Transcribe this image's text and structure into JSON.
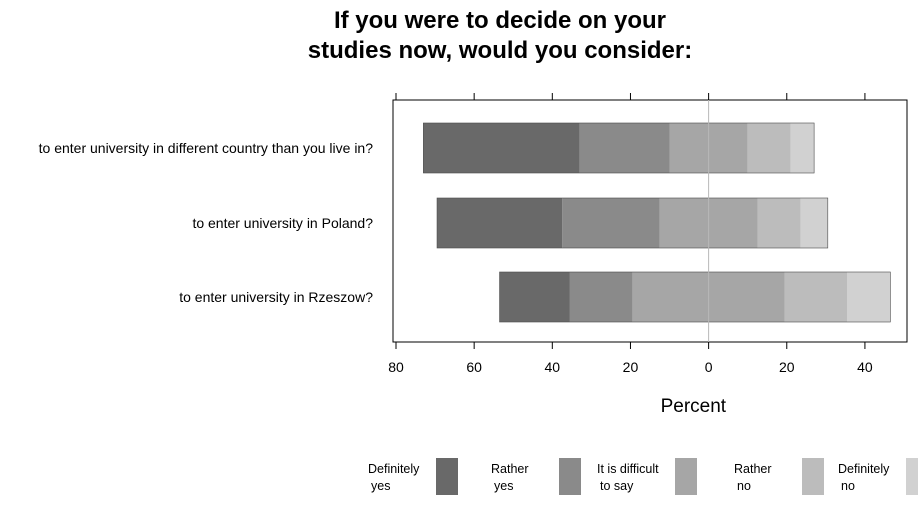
{
  "chart_data": {
    "type": "bar",
    "layout": "diverging-stacked-horizontal",
    "title_lines": [
      "If you were to decide on your",
      "studies now, would you consider:"
    ],
    "xlabel": "Percent",
    "xlim": [
      -80,
      50
    ],
    "x_ticks": [
      -80,
      -60,
      -40,
      -20,
      0,
      20,
      40
    ],
    "x_tick_labels": [
      "80",
      "60",
      "40",
      "20",
      "0",
      "20",
      "40"
    ],
    "categories": [
      "to enter university in different country than you live in?",
      "to enter university in Poland?",
      "to enter university in Rzeszow?"
    ],
    "series": [
      {
        "name_lines": [
          "Definitely",
          "yes"
        ],
        "color": "#696969",
        "values": [
          40,
          32,
          18
        ]
      },
      {
        "name_lines": [
          "Rather",
          "yes"
        ],
        "color": "#8a8a8a",
        "values": [
          23,
          25,
          16
        ]
      },
      {
        "name_lines": [
          "It is difficult",
          "to say"
        ],
        "color": "#a6a6a6",
        "values": [
          20,
          25,
          39
        ]
      },
      {
        "name_lines": [
          "Rather",
          "no"
        ],
        "color": "#bcbcbc",
        "values": [
          11,
          11,
          16
        ]
      },
      {
        "name_lines": [
          "Definitely",
          "no"
        ],
        "color": "#d1d1d1",
        "values": [
          6,
          7,
          11
        ]
      }
    ],
    "neutral_series_index": 2,
    "legend_position": "bottom",
    "grid": false,
    "zero_line": true
  }
}
